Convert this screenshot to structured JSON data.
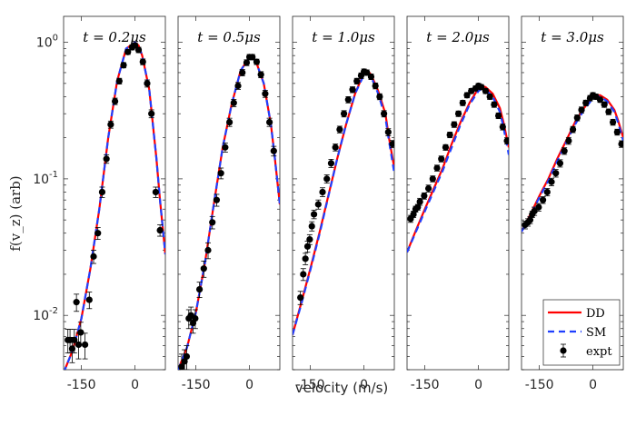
{
  "chart_data": {
    "type": "line",
    "ylabel": "f(v_z) (arb)",
    "xlabel": "velocity (m/s)",
    "yscale": "log",
    "ylim": [
      0.004,
      1.55
    ],
    "yticks": [
      0.01,
      0.1,
      1
    ],
    "ytick_labels": [
      "10^-2",
      "10^-1",
      "10^0"
    ],
    "xlim": [
      -200,
      85
    ],
    "xticks": [
      -150,
      0
    ],
    "xtick_labels": [
      "-150",
      "0"
    ],
    "legend": {
      "placement": "bottom-right",
      "entries": [
        "DD",
        "SM",
        "expt"
      ]
    },
    "colors": {
      "DD": "#ff0000",
      "SM": "#1f3fff",
      "expt": "#000000"
    },
    "panels": [
      {
        "title": "t = 0.2μs",
        "DD": {
          "x": [
            -200,
            -175,
            -150,
            -125,
            -100,
            -75,
            -50,
            -25,
            0,
            10,
            20,
            40,
            60,
            70,
            85
          ],
          "y": [
            0.0038,
            0.0055,
            0.0095,
            0.022,
            0.06,
            0.2,
            0.52,
            0.9,
            1.0,
            0.95,
            0.8,
            0.45,
            0.14,
            0.07,
            0.028
          ]
        },
        "SM": {
          "x": [
            -200,
            -175,
            -150,
            -125,
            -100,
            -75,
            -50,
            -25,
            0,
            10,
            20,
            40,
            60,
            70,
            85
          ],
          "y": [
            0.0038,
            0.0055,
            0.0095,
            0.022,
            0.06,
            0.2,
            0.52,
            0.9,
            1.0,
            0.95,
            0.8,
            0.45,
            0.14,
            0.07,
            0.028
          ]
        },
        "expt": {
          "x": [
            -188,
            -182,
            -176,
            -170,
            -164,
            -158,
            -152,
            -140,
            -128,
            -116,
            -104,
            -92,
            -80,
            -68,
            -56,
            -44,
            -32,
            -20,
            -8,
            0,
            10,
            22,
            34,
            46,
            58,
            70
          ],
          "y": [
            0.0066,
            0.0066,
            0.0057,
            0.0066,
            0.0125,
            0.0061,
            0.0075,
            0.0061,
            0.013,
            0.027,
            0.04,
            0.08,
            0.14,
            0.25,
            0.37,
            0.52,
            0.68,
            0.85,
            0.92,
            0.95,
            0.88,
            0.72,
            0.5,
            0.3,
            0.08,
            0.042
          ],
          "err": [
            0.0013,
            0.0013,
            0.0012,
            0.0013,
            0.0018,
            0.0013,
            0.0014,
            0.0013,
            0.0018,
            0.003,
            0.004,
            0.007,
            0.01,
            0.015,
            0.02,
            0.025,
            0.03,
            0.035,
            0.04,
            0.04,
            0.04,
            0.035,
            0.03,
            0.02,
            0.007,
            0.004
          ]
        }
      },
      {
        "title": "t = 0.5μs",
        "DD": {
          "x": [
            -200,
            -175,
            -150,
            -125,
            -100,
            -75,
            -50,
            -25,
            0,
            10,
            20,
            40,
            60,
            70,
            85
          ],
          "y": [
            0.004,
            0.0058,
            0.0105,
            0.024,
            0.065,
            0.17,
            0.35,
            0.62,
            0.78,
            0.77,
            0.7,
            0.5,
            0.25,
            0.15,
            0.065
          ]
        },
        "SM": {
          "x": [
            -200,
            -175,
            -150,
            -125,
            -100,
            -75,
            -50,
            -25,
            0,
            10,
            20,
            40,
            60,
            70,
            85
          ],
          "y": [
            0.004,
            0.0058,
            0.0105,
            0.024,
            0.065,
            0.17,
            0.35,
            0.62,
            0.78,
            0.77,
            0.7,
            0.5,
            0.25,
            0.15,
            0.065
          ]
        },
        "expt": {
          "x": [
            -190,
            -182,
            -176,
            -170,
            -164,
            -158,
            -152,
            -140,
            -128,
            -116,
            -104,
            -92,
            -80,
            -68,
            -56,
            -44,
            -32,
            -20,
            -8,
            0,
            8,
            20,
            32,
            44,
            56,
            68
          ],
          "y": [
            0.0042,
            0.0046,
            0.005,
            0.0095,
            0.01,
            0.0088,
            0.0095,
            0.0155,
            0.022,
            0.03,
            0.048,
            0.07,
            0.11,
            0.17,
            0.26,
            0.36,
            0.48,
            0.6,
            0.71,
            0.78,
            0.78,
            0.72,
            0.58,
            0.42,
            0.26,
            0.16
          ],
          "err": [
            0.001,
            0.001,
            0.001,
            0.0015,
            0.0015,
            0.0014,
            0.0015,
            0.002,
            0.003,
            0.004,
            0.005,
            0.007,
            0.01,
            0.013,
            0.018,
            0.022,
            0.028,
            0.032,
            0.035,
            0.035,
            0.035,
            0.033,
            0.03,
            0.025,
            0.018,
            0.013
          ]
        }
      },
      {
        "title": "t = 1.0μs",
        "DD": {
          "x": [
            -200,
            -175,
            -150,
            -125,
            -100,
            -75,
            -50,
            -25,
            0,
            10,
            20,
            40,
            60,
            70,
            85
          ],
          "y": [
            0.0072,
            0.0125,
            0.022,
            0.04,
            0.075,
            0.14,
            0.25,
            0.42,
            0.6,
            0.62,
            0.58,
            0.44,
            0.3,
            0.2,
            0.12
          ]
        },
        "SM": {
          "x": [
            -200,
            -175,
            -150,
            -125,
            -100,
            -75,
            -50,
            -25,
            0,
            10,
            20,
            40,
            60,
            70,
            85
          ],
          "y": [
            0.0072,
            0.0122,
            0.0215,
            0.039,
            0.074,
            0.14,
            0.25,
            0.42,
            0.58,
            0.6,
            0.56,
            0.42,
            0.28,
            0.19,
            0.11
          ]
        },
        "expt": {
          "x": [
            -178,
            -170,
            -164,
            -158,
            -152,
            -146,
            -140,
            -128,
            -116,
            -104,
            -92,
            -80,
            -68,
            -56,
            -44,
            -32,
            -20,
            -8,
            0,
            8,
            20,
            32,
            44,
            56,
            68,
            80
          ],
          "y": [
            0.0135,
            0.02,
            0.026,
            0.032,
            0.036,
            0.045,
            0.055,
            0.065,
            0.08,
            0.1,
            0.13,
            0.17,
            0.23,
            0.3,
            0.38,
            0.45,
            0.52,
            0.57,
            0.61,
            0.6,
            0.56,
            0.48,
            0.4,
            0.3,
            0.22,
            0.18
          ],
          "err": [
            0.0015,
            0.002,
            0.0025,
            0.003,
            0.003,
            0.0035,
            0.004,
            0.005,
            0.006,
            0.007,
            0.009,
            0.01,
            0.013,
            0.016,
            0.02,
            0.022,
            0.025,
            0.027,
            0.028,
            0.028,
            0.026,
            0.024,
            0.02,
            0.016,
            0.013,
            0.011
          ]
        }
      },
      {
        "title": "t = 2.0μs",
        "DD": {
          "x": [
            -200,
            -175,
            -150,
            -125,
            -100,
            -75,
            -50,
            -25,
            0,
            10,
            20,
            40,
            60,
            70,
            85
          ],
          "y": [
            0.029,
            0.042,
            0.06,
            0.085,
            0.12,
            0.18,
            0.26,
            0.36,
            0.46,
            0.48,
            0.47,
            0.42,
            0.33,
            0.26,
            0.17
          ]
        },
        "SM": {
          "x": [
            -200,
            -175,
            -150,
            -125,
            -100,
            -75,
            -50,
            -25,
            0,
            10,
            20,
            40,
            60,
            70,
            85
          ],
          "y": [
            0.029,
            0.041,
            0.058,
            0.082,
            0.115,
            0.17,
            0.25,
            0.35,
            0.44,
            0.46,
            0.45,
            0.4,
            0.31,
            0.24,
            0.15
          ]
        },
        "expt": {
          "x": [
            -190,
            -182,
            -176,
            -170,
            -164,
            -152,
            -140,
            -128,
            -116,
            -104,
            -92,
            -80,
            -68,
            -56,
            -44,
            -32,
            -20,
            -8,
            0,
            8,
            20,
            32,
            44,
            56,
            68,
            80
          ],
          "y": [
            0.051,
            0.055,
            0.06,
            0.062,
            0.068,
            0.075,
            0.085,
            0.1,
            0.12,
            0.14,
            0.17,
            0.21,
            0.25,
            0.3,
            0.36,
            0.41,
            0.44,
            0.46,
            0.48,
            0.47,
            0.44,
            0.4,
            0.35,
            0.29,
            0.24,
            0.19
          ],
          "err": [
            0.003,
            0.003,
            0.003,
            0.003,
            0.004,
            0.004,
            0.005,
            0.005,
            0.006,
            0.007,
            0.008,
            0.01,
            0.012,
            0.014,
            0.016,
            0.018,
            0.019,
            0.02,
            0.02,
            0.02,
            0.019,
            0.018,
            0.016,
            0.014,
            0.012,
            0.01
          ]
        }
      },
      {
        "title": "t = 3.0μs",
        "DD": {
          "x": [
            -200,
            -175,
            -150,
            -125,
            -100,
            -75,
            -50,
            -25,
            0,
            10,
            20,
            40,
            60,
            70,
            85
          ],
          "y": [
            0.041,
            0.055,
            0.075,
            0.1,
            0.14,
            0.19,
            0.26,
            0.33,
            0.4,
            0.41,
            0.41,
            0.38,
            0.32,
            0.27,
            0.2
          ]
        },
        "SM": {
          "x": [
            -200,
            -175,
            -150,
            -125,
            -100,
            -75,
            -50,
            -25,
            0,
            10,
            20,
            40,
            60,
            70,
            85
          ],
          "y": [
            0.041,
            0.054,
            0.073,
            0.097,
            0.135,
            0.185,
            0.25,
            0.32,
            0.39,
            0.4,
            0.4,
            0.37,
            0.31,
            0.26,
            0.19
          ]
        },
        "expt": {
          "x": [
            -190,
            -182,
            -176,
            -170,
            -164,
            -152,
            -140,
            -128,
            -116,
            -104,
            -92,
            -80,
            -68,
            -56,
            -44,
            -32,
            -20,
            -8,
            0,
            8,
            20,
            32,
            44,
            56,
            68,
            80
          ],
          "y": [
            0.046,
            0.048,
            0.05,
            0.055,
            0.058,
            0.062,
            0.07,
            0.08,
            0.095,
            0.11,
            0.13,
            0.16,
            0.19,
            0.23,
            0.28,
            0.32,
            0.36,
            0.39,
            0.41,
            0.4,
            0.38,
            0.35,
            0.31,
            0.26,
            0.22,
            0.18
          ],
          "err": [
            0.003,
            0.003,
            0.003,
            0.003,
            0.004,
            0.004,
            0.004,
            0.005,
            0.006,
            0.007,
            0.008,
            0.009,
            0.011,
            0.012,
            0.014,
            0.016,
            0.017,
            0.018,
            0.018,
            0.018,
            0.017,
            0.016,
            0.015,
            0.013,
            0.011,
            0.01
          ]
        }
      }
    ]
  }
}
